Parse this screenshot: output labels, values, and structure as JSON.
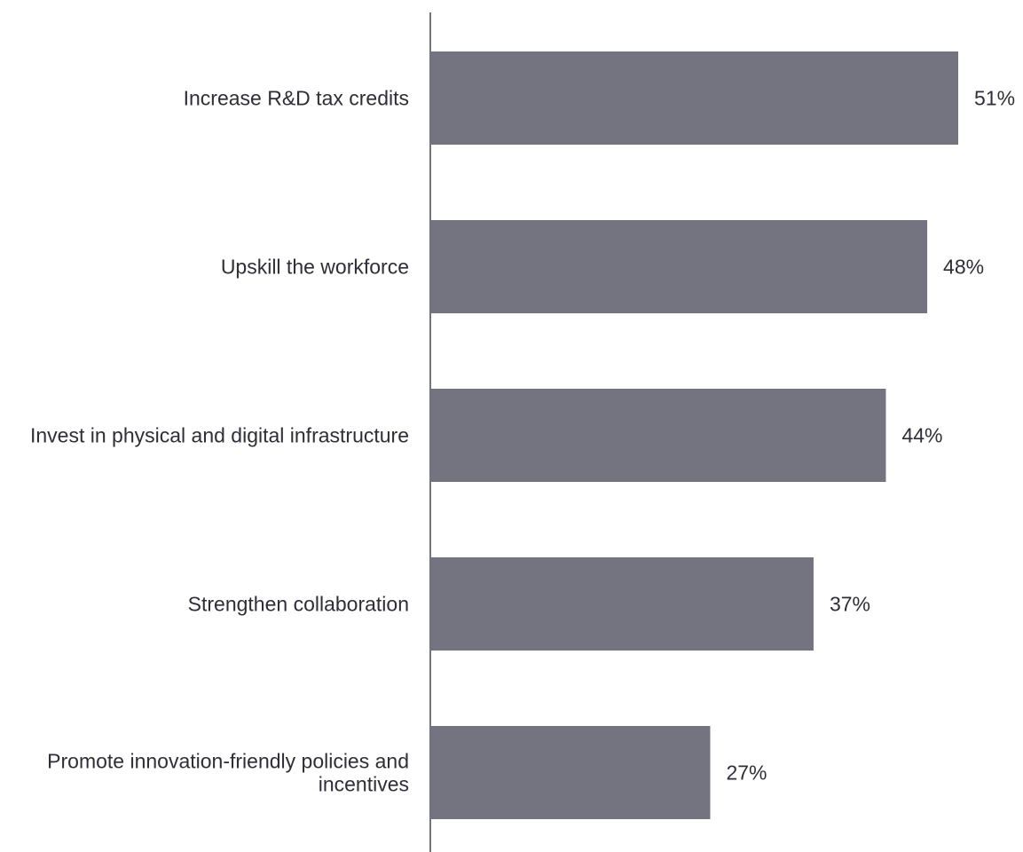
{
  "chart_data": {
    "type": "bar",
    "orientation": "horizontal",
    "categories": [
      "Increase R&D tax credits",
      "Upskill the workforce",
      "Invest in physical and digital infrastructure",
      "Strengthen collaboration",
      "Promote innovation-friendly policies and incentives"
    ],
    "values": [
      51,
      48,
      44,
      37,
      27
    ],
    "value_labels": [
      "51%",
      "48%",
      "44%",
      "37%",
      "27%"
    ],
    "unit": "%",
    "xlim": [
      0,
      51
    ],
    "grid": false,
    "legend": "none",
    "bar_color": "#747480",
    "axis_color": "#747480",
    "text_color": "#2e2e38"
  }
}
